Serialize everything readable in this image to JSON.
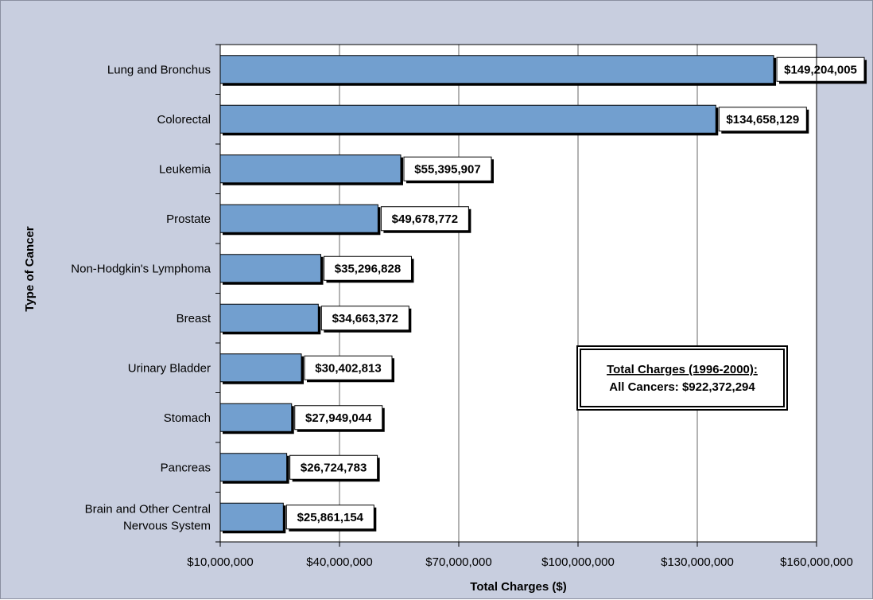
{
  "chart_data": {
    "type": "bar",
    "orientation": "horizontal",
    "xlabel": "Total Charges ($)",
    "ylabel": "Type of Cancer",
    "xlim": [
      10000000,
      160000000
    ],
    "xticks": [
      10000000,
      40000000,
      70000000,
      100000000,
      130000000,
      160000000
    ],
    "xtick_labels": [
      "$10,000,000",
      "$40,000,000",
      "$70,000,000",
      "$100,000,000",
      "$130,000,000",
      "$160,000,000"
    ],
    "grid": "vertical",
    "bar_color": "#729fcf",
    "categories": [
      "Lung and Bronchus",
      "Colorectal",
      "Leukemia",
      "Prostate",
      "Non-Hodgkin's Lymphoma",
      "Breast",
      "Urinary Bladder",
      "Stomach",
      "Pancreas",
      "Brain and Other Central Nervous System"
    ],
    "category_lines": [
      [
        "Lung and Bronchus"
      ],
      [
        "Colorectal"
      ],
      [
        "Leukemia"
      ],
      [
        "Prostate"
      ],
      [
        "Non-Hodgkin's Lymphoma"
      ],
      [
        "Breast"
      ],
      [
        "Urinary Bladder"
      ],
      [
        "Stomach"
      ],
      [
        "Pancreas"
      ],
      [
        "Brain and Other Central",
        "Nervous System"
      ]
    ],
    "values": [
      149204005,
      134658129,
      55395907,
      49678772,
      35296828,
      34663372,
      30402813,
      27949044,
      26724783,
      25861154
    ],
    "data_labels": [
      "$149,204,005",
      "$134,658,129",
      "$55,395,907",
      "$49,678,772",
      "$35,296,828",
      "$34,663,372",
      "$30,402,813",
      "$27,949,044",
      "$26,724,783",
      "$25,861,154"
    ],
    "annotation": {
      "heading": "Total Charges (1996-2000):",
      "body": "All Cancers: $922,372,294"
    }
  }
}
